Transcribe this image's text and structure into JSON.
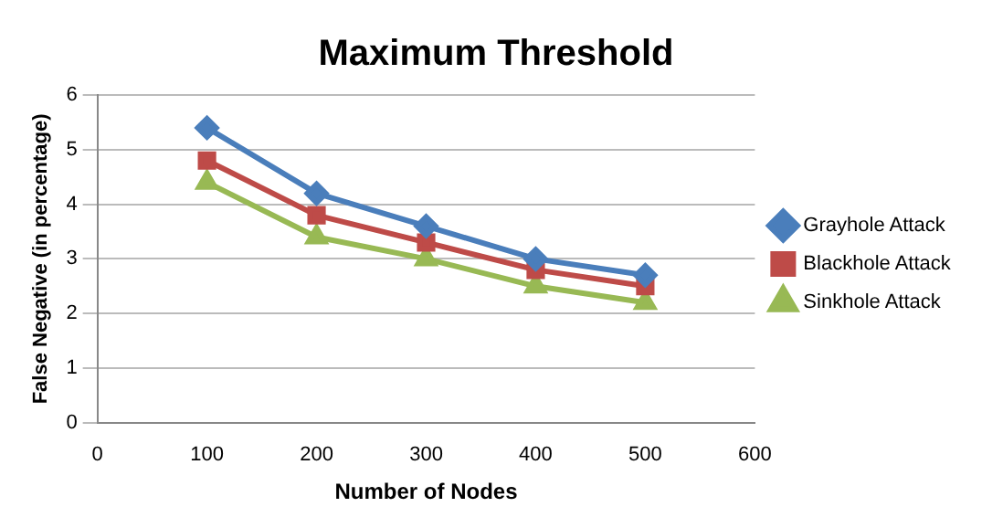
{
  "chart_data": {
    "type": "line",
    "title": "Maximum Threshold",
    "xlabel": "Number of Nodes",
    "ylabel": "False Negative (in percentage)",
    "x": [
      100,
      200,
      300,
      400,
      500
    ],
    "xlim": [
      0,
      600
    ],
    "xticks": [
      0,
      100,
      200,
      300,
      400,
      500,
      600
    ],
    "ylim": [
      0,
      6
    ],
    "yticks": [
      0,
      1,
      2,
      3,
      4,
      5,
      6
    ],
    "grid": "y",
    "legend": "right",
    "series": [
      {
        "name": "Grayhole Attack",
        "color": "#4a7ebb",
        "marker": "diamond",
        "values": [
          5.4,
          4.2,
          3.6,
          3.0,
          2.7
        ]
      },
      {
        "name": "Blackhole Attack",
        "color": "#be4b48",
        "marker": "square",
        "values": [
          4.8,
          3.8,
          3.3,
          2.8,
          2.5
        ]
      },
      {
        "name": "Sinkhole Attack",
        "color": "#98b954",
        "marker": "triangle",
        "values": [
          4.4,
          3.4,
          3.0,
          2.5,
          2.2
        ]
      }
    ]
  }
}
